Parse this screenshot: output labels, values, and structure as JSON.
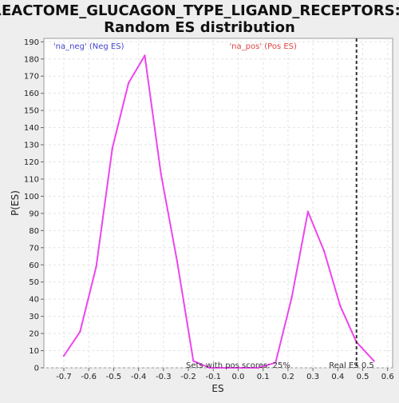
{
  "chart_data": {
    "type": "line",
    "title_lines": [
      "REACTOME_GLUCAGON_TYPE_LIGAND_RECEPTORS:",
      "Random ES distribution"
    ],
    "xlabel": "ES",
    "ylabel": "P(ES)",
    "xlim": [
      -0.78,
      0.62
    ],
    "ylim": [
      0,
      192
    ],
    "x_ticks": [
      -0.7,
      -0.6,
      -0.5,
      -0.4,
      -0.3,
      -0.2,
      -0.1,
      0.0,
      0.1,
      0.2,
      0.3,
      0.4,
      0.5,
      0.6
    ],
    "x_tick_labels": [
      "-0.7",
      "-0.6",
      "-0.5",
      "-0.4",
      "-0.3",
      "-0.2",
      "-0.1",
      "0.0",
      "0.1",
      "0.2",
      "0.3",
      "0.4",
      "0.5",
      "0.6"
    ],
    "y_ticks": [
      0,
      10,
      20,
      30,
      40,
      50,
      60,
      70,
      80,
      90,
      100,
      110,
      120,
      130,
      140,
      150,
      160,
      170,
      180,
      190
    ],
    "grid": true,
    "series": [
      {
        "color": "#ee44ee",
        "x": [
          -0.7,
          -0.635,
          -0.57,
          -0.505,
          -0.44,
          -0.375,
          -0.31,
          -0.245,
          -0.18,
          -0.115,
          -0.05,
          0.015,
          0.08,
          0.15,
          0.215,
          0.28,
          0.345,
          0.41,
          0.475,
          0.545
        ],
        "y": [
          7,
          21,
          59,
          128,
          166,
          182,
          113,
          62,
          4,
          0,
          0,
          0,
          0,
          3,
          41,
          91,
          68,
          36,
          15,
          4
        ]
      }
    ],
    "real_es": {
      "x": 0.475,
      "color": "#333333",
      "label": "Real ES 0.5"
    },
    "annotations": {
      "neg": {
        "text": "'na_neg' (Neg ES)",
        "color": "#4444cc",
        "x": -0.6
      },
      "pos": {
        "text": "'na_pos' (Pos ES)",
        "color": "#dd4444",
        "x": 0.1
      },
      "sets_pos": {
        "text": "Sets with pos scores: 25%",
        "color": "#333333"
      }
    }
  }
}
